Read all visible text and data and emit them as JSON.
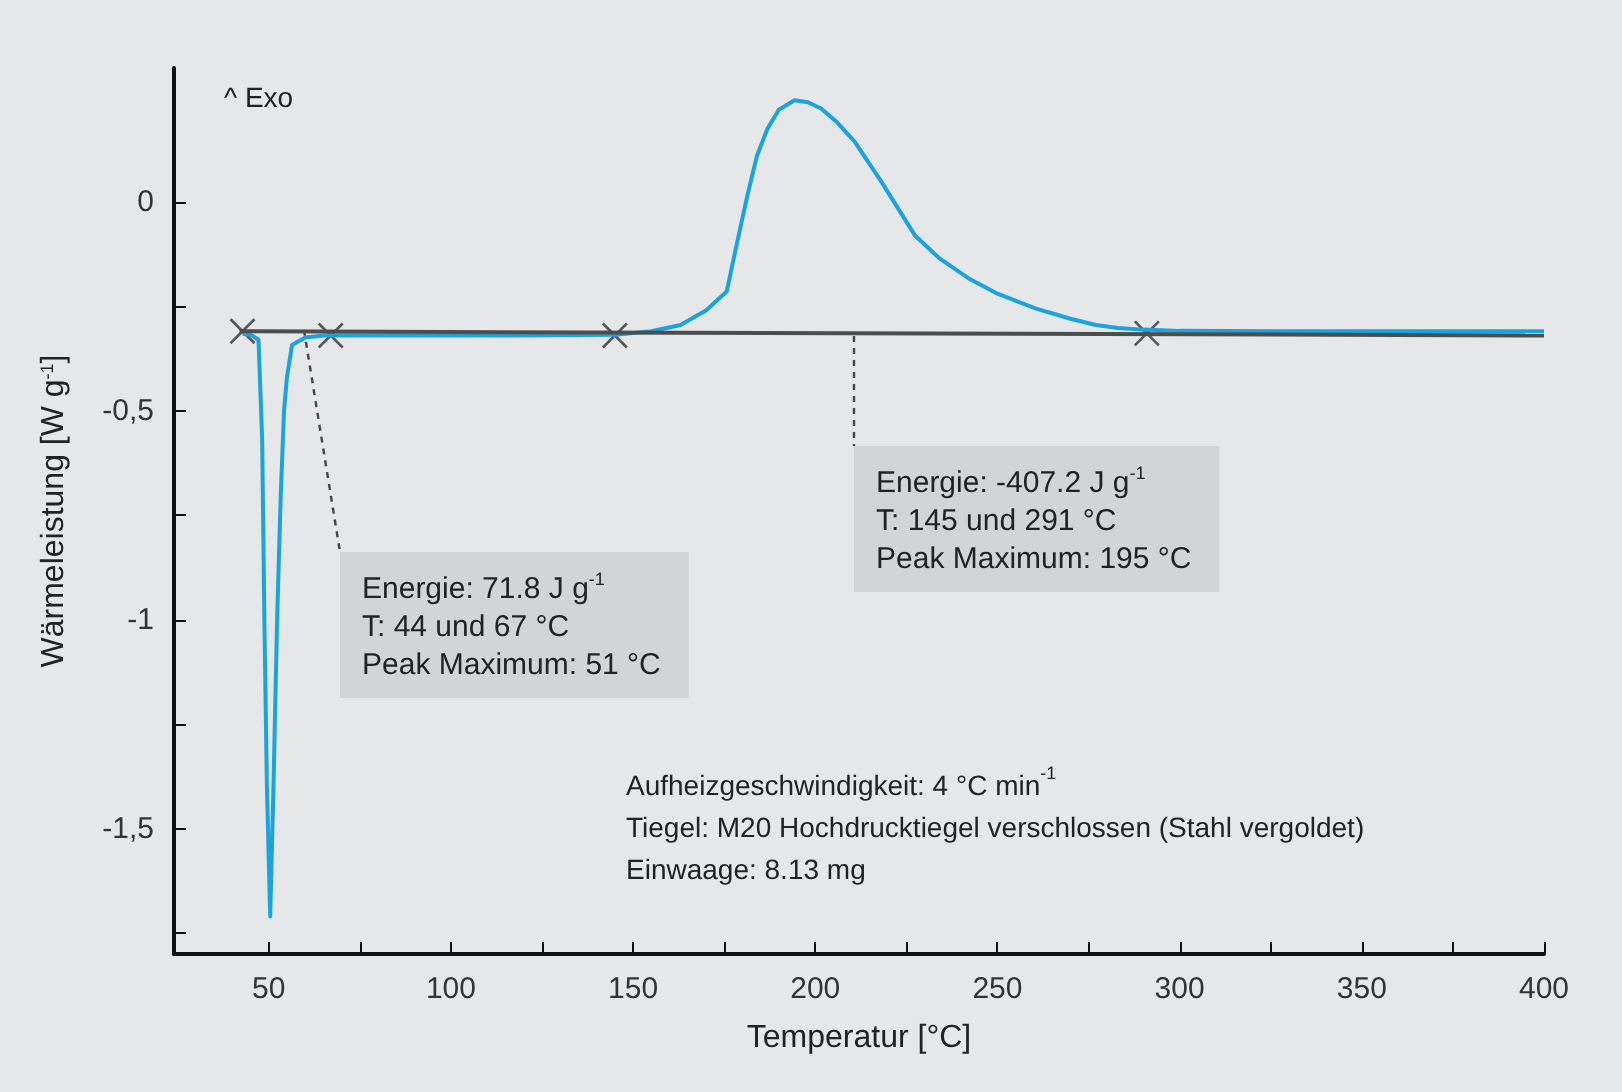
{
  "chart_data": {
    "type": "line",
    "xlabel": "Temperatur [°C]",
    "ylabel": "Wärmeleistung [W g$^{-1}$]",
    "xlim": [
      24,
      400
    ],
    "ylim": [
      -1.8,
      0.32
    ],
    "xticks": [
      50,
      {
        "value": 75,
        "label": null
      },
      100,
      {
        "value": 125,
        "label": null
      },
      150,
      {
        "value": 175,
        "label": null
      },
      200,
      {
        "value": 225,
        "label": null
      },
      250,
      {
        "value": 275,
        "label": null
      },
      300,
      {
        "value": 325,
        "label": null
      },
      350,
      {
        "value": 375,
        "label": null
      },
      400
    ],
    "yticks": [
      {
        "value": -1.75,
        "label": null
      },
      {
        "value": -1.5,
        "label": "-1,5"
      },
      {
        "value": -1.25,
        "label": null
      },
      -1,
      {
        "value": -0.75,
        "label": null
      },
      {
        "value": -0.5,
        "label": "-0,5"
      },
      {
        "value": -0.25,
        "label": null
      },
      0
    ],
    "grid": false,
    "series": [
      {
        "color": "#1aa3e0",
        "marker": "none",
        "x": [
          42.8,
          45,
          47.2,
          48.2,
          48.8,
          49.5,
          50.4,
          51.3,
          52.3,
          53.3,
          54.2,
          55,
          56.4,
          60,
          65,
          80,
          100,
          120,
          145,
          155,
          163,
          170,
          175.7,
          178,
          181.4,
          184,
          186.9,
          190,
          194.3,
          198,
          201.6,
          206,
          210.8,
          218,
          227.3,
          234,
          242,
          250,
          260.4,
          270,
          277,
          283,
          289.8,
          300,
          330,
          360,
          400
        ],
        "values": [
          -0.316,
          -0.318,
          -0.33,
          -0.57,
          -1.0,
          -1.4,
          -1.71,
          -1.4,
          -1.0,
          -0.7,
          -0.5,
          -0.42,
          -0.343,
          -0.325,
          -0.32,
          -0.32,
          -0.32,
          -0.32,
          -0.318,
          -0.31,
          -0.295,
          -0.26,
          -0.215,
          -0.12,
          0.016,
          0.11,
          0.175,
          0.22,
          0.243,
          0.238,
          0.223,
          0.19,
          0.144,
          0.05,
          -0.08,
          -0.135,
          -0.183,
          -0.22,
          -0.255,
          -0.28,
          -0.295,
          -0.302,
          -0.306,
          -0.309,
          -0.31,
          -0.31,
          -0.31
        ]
      },
      {
        "color": "#4d4d4d",
        "marker": "none",
        "x": [
          42,
          400
        ],
        "values": [
          -0.31,
          -0.32
        ]
      },
      {
        "type": "scatter",
        "color": "#333333",
        "marker": "cross",
        "x": [
          42.8,
          67,
          145,
          291
        ],
        "values": [
          -0.31,
          -0.32,
          -0.32,
          -0.315
        ]
      }
    ],
    "annotations": [
      "^ Exo",
      "Energie: 71.8 J g$^{-1}$\nT: 44 und 67 °C\nPeak Maximum: 51 °C",
      "Energie: -407.2 J g$^{-1}$\nT: 145 und 291 °C\nPeak Maximum: 195 °C",
      "Aufheizgeschwindigkeit: 4 °C min$^{-1}$\nTiegel: M20 Hochdrucktiegel verschlossen (Stahl vergoldet)\nEinwaage: 8.13 mg"
    ]
  }
}
